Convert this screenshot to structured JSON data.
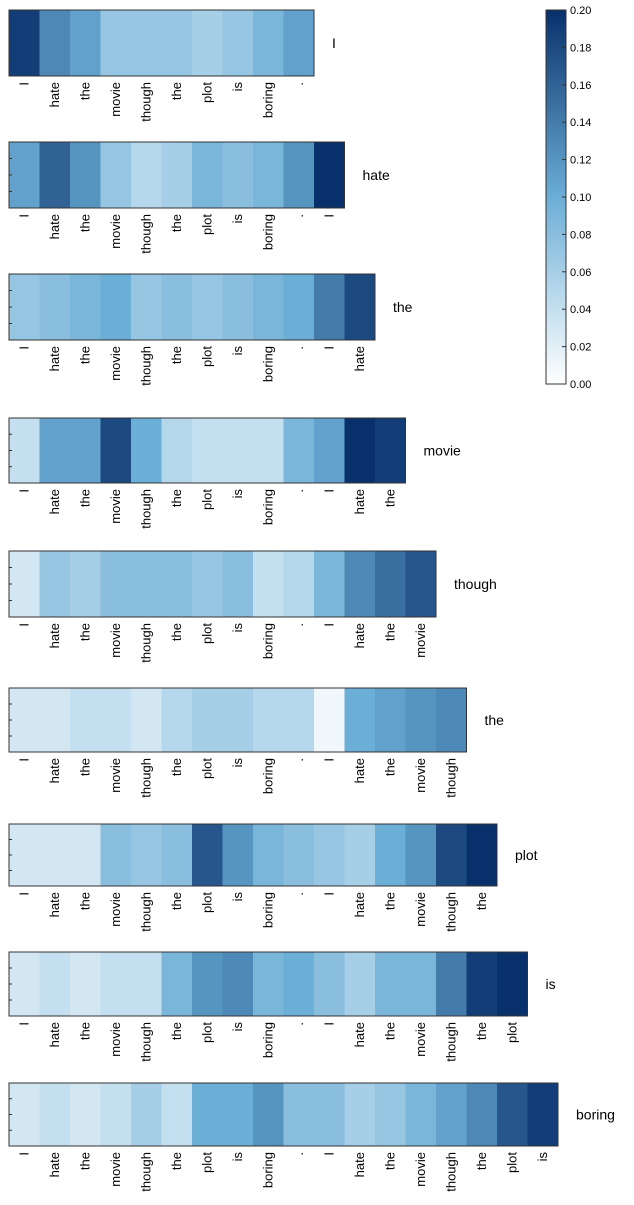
{
  "chart_data": {
    "type": "heatmap",
    "colorbar": {
      "min": 0,
      "max": 0.2,
      "ticks": [
        "0.00",
        "0.02",
        "0.04",
        "0.06",
        "0.08",
        "0.10",
        "0.12",
        "0.14",
        "0.16",
        "0.18",
        "0.20"
      ],
      "color_low": "#ffffff",
      "color_mid": "#6baed6",
      "color_high": "#08306b"
    },
    "rows": [
      {
        "target": "I",
        "tokens": [
          "I",
          "hate",
          "the",
          "movie",
          "though",
          "the",
          "plot",
          "is",
          "boring",
          "."
        ],
        "values": [
          0.19,
          0.13,
          0.11,
          0.07,
          0.07,
          0.07,
          0.06,
          0.07,
          0.09,
          0.11
        ]
      },
      {
        "target": "hate",
        "tokens": [
          "I",
          "hate",
          "the",
          "movie",
          "though",
          "the",
          "plot",
          "is",
          "boring",
          ".",
          "I"
        ],
        "values": [
          0.11,
          0.16,
          0.12,
          0.07,
          0.05,
          0.06,
          0.09,
          0.08,
          0.09,
          0.12,
          0.2
        ]
      },
      {
        "target": "the",
        "tokens": [
          "I",
          "hate",
          "the",
          "movie",
          "though",
          "the",
          "plot",
          "is",
          "boring",
          ".",
          "I",
          "hate"
        ],
        "values": [
          0.07,
          0.08,
          0.09,
          0.1,
          0.07,
          0.08,
          0.07,
          0.08,
          0.09,
          0.1,
          0.14,
          0.18
        ]
      },
      {
        "target": "movie",
        "tokens": [
          "I",
          "hate",
          "the",
          "movie",
          "though",
          "the",
          "plot",
          "is",
          "boring",
          ".",
          "I",
          "hate",
          "the"
        ],
        "values": [
          0.04,
          0.11,
          0.11,
          0.18,
          0.1,
          0.05,
          0.04,
          0.04,
          0.04,
          0.09,
          0.11,
          0.2,
          0.19
        ]
      },
      {
        "target": "though",
        "tokens": [
          "I",
          "hate",
          "the",
          "movie",
          "though",
          "the",
          "plot",
          "is",
          "boring",
          ".",
          "I",
          "hate",
          "the",
          "movie"
        ],
        "values": [
          0.03,
          0.07,
          0.06,
          0.08,
          0.08,
          0.08,
          0.07,
          0.08,
          0.04,
          0.05,
          0.09,
          0.13,
          0.15,
          0.17
        ]
      },
      {
        "target": "the",
        "tokens": [
          "I",
          "hate",
          "the",
          "movie",
          "though",
          "the",
          "plot",
          "is",
          "boring",
          ".",
          "I",
          "hate",
          "the",
          "movie",
          "though"
        ],
        "values": [
          0.03,
          0.03,
          0.04,
          0.04,
          0.03,
          0.05,
          0.06,
          0.06,
          0.05,
          0.05,
          0.01,
          0.1,
          0.11,
          0.12,
          0.13
        ]
      },
      {
        "target": "plot",
        "tokens": [
          "I",
          "hate",
          "the",
          "movie",
          "though",
          "the",
          "plot",
          "is",
          "boring",
          ".",
          "I",
          "hate",
          "the",
          "movie",
          "though",
          "the"
        ],
        "values": [
          0.03,
          0.03,
          0.03,
          0.08,
          0.07,
          0.08,
          0.17,
          0.12,
          0.09,
          0.08,
          0.07,
          0.06,
          0.1,
          0.12,
          0.18,
          0.2
        ]
      },
      {
        "target": "is",
        "tokens": [
          "I",
          "hate",
          "the",
          "movie",
          "though",
          "the",
          "plot",
          "is",
          "boring",
          ".",
          "I",
          "hate",
          "the",
          "movie",
          "though",
          "the",
          "plot"
        ],
        "values": [
          0.03,
          0.04,
          0.03,
          0.04,
          0.04,
          0.09,
          0.12,
          0.13,
          0.09,
          0.1,
          0.08,
          0.06,
          0.09,
          0.09,
          0.14,
          0.19,
          0.2
        ]
      },
      {
        "target": "boring",
        "tokens": [
          "I",
          "hate",
          "the",
          "movie",
          "though",
          "the",
          "plot",
          "is",
          "boring",
          ".",
          "I",
          "hate",
          "the",
          "movie",
          "though",
          "the",
          "plot",
          "is"
        ],
        "values": [
          0.03,
          0.04,
          0.03,
          0.04,
          0.06,
          0.04,
          0.1,
          0.1,
          0.12,
          0.08,
          0.08,
          0.06,
          0.07,
          0.09,
          0.11,
          0.13,
          0.17,
          0.19
        ]
      }
    ]
  }
}
